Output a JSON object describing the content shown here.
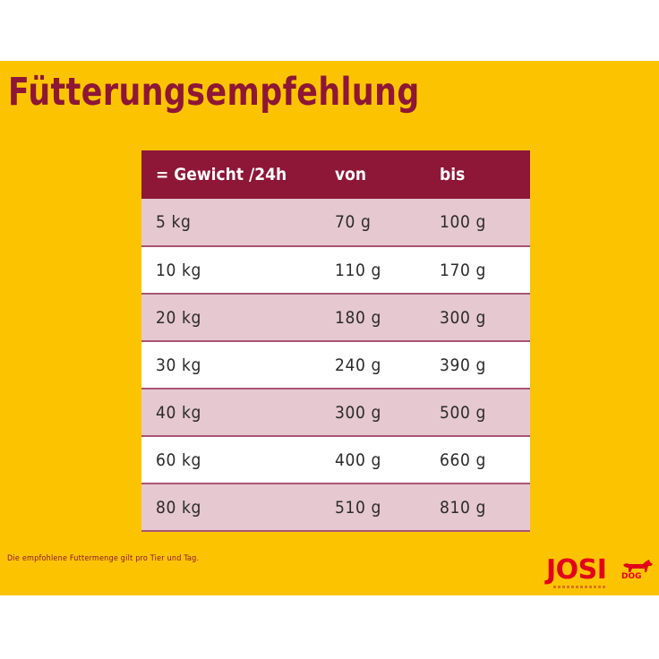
{
  "title": "Fütterungsempfehlung",
  "table": {
    "headers": [
      "= Gewicht /24h",
      "von",
      "bis"
    ],
    "rows": [
      [
        "5 kg",
        "70 g",
        "100 g"
      ],
      [
        "10 kg",
        "110 g",
        "170 g"
      ],
      [
        "20 kg",
        "180 g",
        "300 g"
      ],
      [
        "30 kg",
        "240 g",
        "390 g"
      ],
      [
        "40 kg",
        "300 g",
        "500 g"
      ],
      [
        "60 kg",
        "400 g",
        "660 g"
      ],
      [
        "80 kg",
        "510 g",
        "810 g"
      ]
    ]
  },
  "footnote": "Die empfohlene Futtermenge gilt pro Tier und Tag.",
  "logo": {
    "name": "JOSI",
    "suffix": "DOG",
    "icon": "dog-icon"
  },
  "colors": {
    "background": "#fcc400",
    "accent": "#8e1636",
    "row_tint": "#e6c8d1",
    "logo": "#e3001b"
  }
}
